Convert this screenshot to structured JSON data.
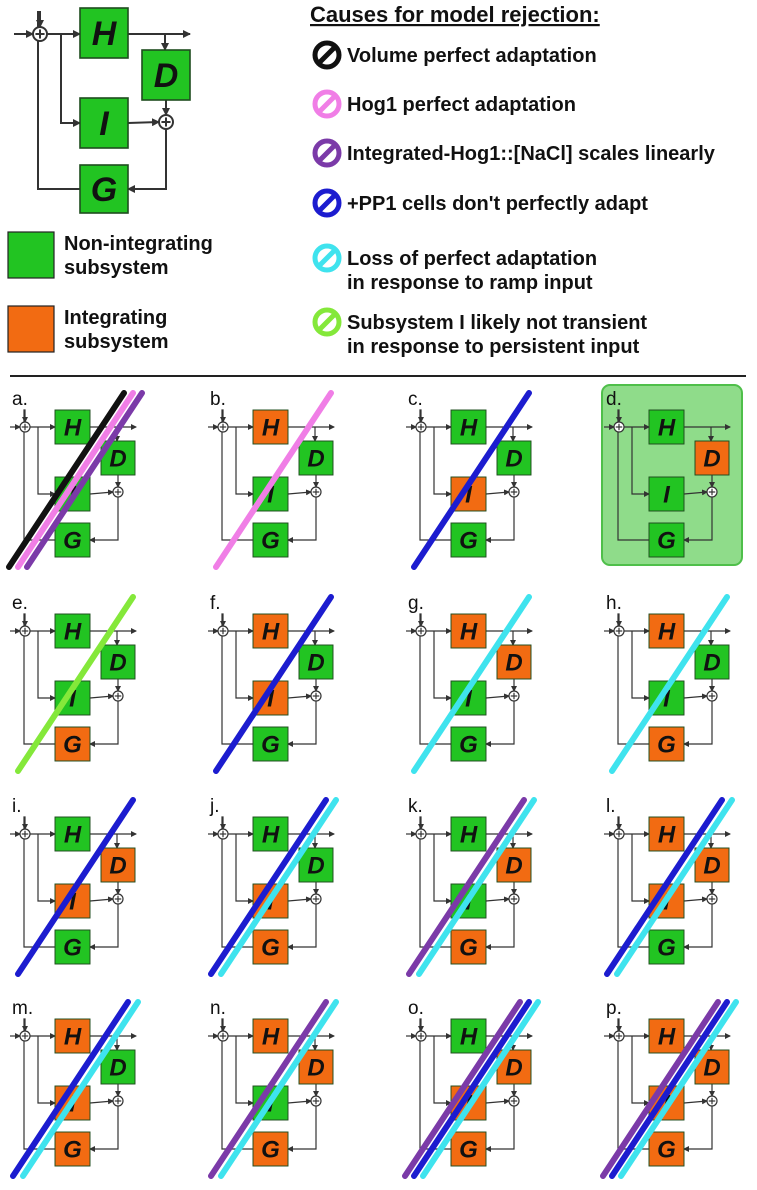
{
  "colors": {
    "non_integrating": "#22c422",
    "integrating": "#f26b12",
    "accepted_bg": "#8fdc8a",
    "accepted_border": "#4fbf4a",
    "line": "#333333"
  },
  "key_diagram": {
    "blocks": {
      "H": "H",
      "D": "D",
      "I": "I",
      "G": "G"
    }
  },
  "legend": [
    {
      "color_key": "non_integrating",
      "label_lines": [
        "Non-integrating",
        "subsystem"
      ]
    },
    {
      "color_key": "integrating",
      "label_lines": [
        "Integrating",
        "subsystem"
      ]
    }
  ],
  "causes": {
    "header": "Causes for model rejection:",
    "items": [
      {
        "color": "#111111",
        "lines": [
          "Volume perfect adaptation"
        ]
      },
      {
        "color": "#f07ee6",
        "lines": [
          "Hog1 perfect adaptation"
        ]
      },
      {
        "color": "#7b3aa8",
        "lines": [
          "Integrated-Hog1::[NaCl] scales linearly"
        ]
      },
      {
        "color": "#1c1ccf",
        "lines": [
          "+PP1 cells don't perfectly adapt"
        ]
      },
      {
        "color": "#3fe3ee",
        "lines": [
          "Loss of perfect adaptation",
          "in response to ramp input"
        ]
      },
      {
        "color": "#84e83a",
        "lines": [
          "Subsystem I likely not transient",
          "in response to persistent input"
        ]
      }
    ]
  },
  "panels": [
    {
      "label": "a.",
      "H": "N",
      "D": "N",
      "I": "N",
      "G": "N",
      "accepted": false,
      "strikes": [
        0,
        1,
        2
      ]
    },
    {
      "label": "b.",
      "H": "I",
      "D": "N",
      "I": "N",
      "G": "N",
      "accepted": false,
      "strikes": [
        1
      ]
    },
    {
      "label": "c.",
      "H": "N",
      "D": "N",
      "I": "I",
      "G": "N",
      "accepted": false,
      "strikes": [
        3
      ]
    },
    {
      "label": "d.",
      "H": "N",
      "D": "I",
      "I": "N",
      "G": "N",
      "accepted": true,
      "strikes": []
    },
    {
      "label": "e.",
      "H": "N",
      "D": "N",
      "I": "N",
      "G": "I",
      "accepted": false,
      "strikes": [
        5
      ]
    },
    {
      "label": "f.",
      "H": "I",
      "D": "N",
      "I": "I",
      "G": "N",
      "accepted": false,
      "strikes": [
        3
      ]
    },
    {
      "label": "g.",
      "H": "I",
      "D": "I",
      "I": "N",
      "G": "N",
      "accepted": false,
      "strikes": [
        4
      ]
    },
    {
      "label": "h.",
      "H": "I",
      "D": "N",
      "I": "N",
      "G": "I",
      "accepted": false,
      "strikes": [
        4
      ]
    },
    {
      "label": "i.",
      "H": "N",
      "D": "I",
      "I": "I",
      "G": "N",
      "accepted": false,
      "strikes": [
        3
      ]
    },
    {
      "label": "j.",
      "H": "N",
      "D": "N",
      "I": "I",
      "G": "I",
      "accepted": false,
      "strikes": [
        3,
        4
      ]
    },
    {
      "label": "k.",
      "H": "N",
      "D": "I",
      "I": "N",
      "G": "I",
      "accepted": false,
      "strikes": [
        2,
        4
      ]
    },
    {
      "label": "l.",
      "H": "I",
      "D": "I",
      "I": "I",
      "G": "N",
      "accepted": false,
      "strikes": [
        3,
        4
      ]
    },
    {
      "label": "m.",
      "H": "I",
      "D": "N",
      "I": "I",
      "G": "I",
      "accepted": false,
      "strikes": [
        3,
        4
      ]
    },
    {
      "label": "n.",
      "H": "I",
      "D": "I",
      "I": "N",
      "G": "I",
      "accepted": false,
      "strikes": [
        2,
        4
      ]
    },
    {
      "label": "o.",
      "H": "N",
      "D": "I",
      "I": "I",
      "G": "I",
      "accepted": false,
      "strikes": [
        2,
        3,
        4
      ]
    },
    {
      "label": "p.",
      "H": "I",
      "D": "I",
      "I": "I",
      "G": "I",
      "accepted": false,
      "strikes": [
        2,
        3,
        4
      ]
    }
  ]
}
